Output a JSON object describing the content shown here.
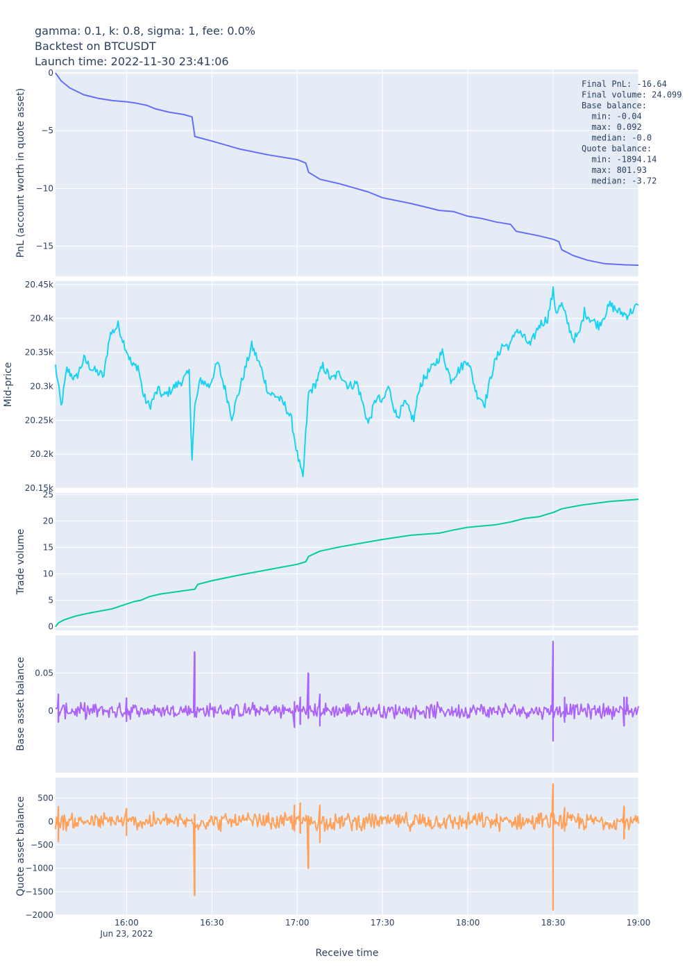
{
  "title_lines": [
    "gamma: 0.1, k: 0.8, sigma: 1, fee: 0.0%",
    "Backtest on BTCUSDT",
    "Launch time: 2022-11-30 23:41:06"
  ],
  "stats_lines": [
    "Final PnL: -16.64",
    "Final volume: 24.099",
    "Base balance:",
    "  min: -0.04",
    "  max: 0.092",
    "  median: -0.0",
    "Quote balance:",
    "  min: -1894.14",
    "  max: 801.93",
    "  median: -3.72"
  ],
  "x_axis": {
    "title": "Receive time",
    "range": [
      "15:35",
      "19:00"
    ],
    "ticks": [
      {
        "time": "16:00",
        "label": "16:00",
        "sublabel": "Jun 23, 2022"
      },
      {
        "time": "16:30",
        "label": "16:30",
        "sublabel": ""
      },
      {
        "time": "17:00",
        "label": "17:00",
        "sublabel": ""
      },
      {
        "time": "17:30",
        "label": "17:30",
        "sublabel": ""
      },
      {
        "time": "18:00",
        "label": "18:00",
        "sublabel": ""
      },
      {
        "time": "18:30",
        "label": "18:30",
        "sublabel": ""
      },
      {
        "time": "19:00",
        "label": "19:00",
        "sublabel": ""
      }
    ]
  },
  "chart_data": [
    {
      "type": "line",
      "ylabel": "PnL (account worth in quote asset)",
      "ylim": [
        -17.6,
        0.3
      ],
      "yticks": [
        {
          "value": 0,
          "label": "0"
        },
        {
          "value": -5,
          "label": "−5"
        },
        {
          "value": -10,
          "label": "−10"
        },
        {
          "value": -15,
          "label": "−15"
        }
      ],
      "color": "#636efa",
      "series": [
        {
          "x": [
            "15:35",
            "15:37",
            "15:40",
            "15:45",
            "15:50",
            "15:55",
            "16:00",
            "16:03",
            "16:07",
            "16:10",
            "16:15",
            "16:20",
            "16:23",
            "16:24",
            "16:30",
            "16:40",
            "16:50",
            "17:00",
            "17:03",
            "17:04",
            "17:08",
            "17:15",
            "17:25",
            "17:30",
            "17:40",
            "17:50",
            "17:55",
            "18:00",
            "18:05",
            "18:10",
            "18:15",
            "18:17",
            "18:25",
            "18:30",
            "18:32",
            "18:33",
            "18:37",
            "18:42",
            "18:48",
            "18:55",
            "19:00"
          ],
          "y": [
            0,
            -0.7,
            -1.3,
            -1.9,
            -2.2,
            -2.4,
            -2.5,
            -2.6,
            -2.8,
            -3.1,
            -3.4,
            -3.6,
            -3.8,
            -5.5,
            -5.9,
            -6.6,
            -7.1,
            -7.5,
            -7.8,
            -8.6,
            -9.2,
            -9.6,
            -10.3,
            -10.8,
            -11.3,
            -11.9,
            -12.0,
            -12.4,
            -12.6,
            -12.9,
            -13.1,
            -13.7,
            -14.1,
            -14.4,
            -14.6,
            -15.3,
            -15.8,
            -16.2,
            -16.5,
            -16.6,
            -16.64
          ]
        }
      ]
    },
    {
      "type": "line",
      "ylabel": "Mid-price",
      "ylim": [
        20150,
        20455
      ],
      "yticks": [
        {
          "value": 20450,
          "label": "20.45k"
        },
        {
          "value": 20400,
          "label": "20.4k"
        },
        {
          "value": 20350,
          "label": "20.35k"
        },
        {
          "value": 20300,
          "label": "20.3k"
        },
        {
          "value": 20250,
          "label": "20.25k"
        },
        {
          "value": 20200,
          "label": "20.2k"
        },
        {
          "value": 20150,
          "label": "20.15k"
        }
      ],
      "color": "#19d3f3",
      "series": [
        {
          "x": [
            "15:35",
            "15:37",
            "15:39",
            "15:42",
            "15:45",
            "15:48",
            "15:52",
            "15:54",
            "15:57",
            "15:59",
            "16:02",
            "16:04",
            "16:06",
            "16:08",
            "16:11",
            "16:13",
            "16:17",
            "16:20",
            "16:22",
            "16:23",
            "16:24",
            "16:26",
            "16:29",
            "16:32",
            "16:35",
            "16:37",
            "16:40",
            "16:44",
            "16:47",
            "16:50",
            "16:53",
            "16:56",
            "16:58",
            "17:00",
            "17:02",
            "17:03",
            "17:04",
            "17:06",
            "17:09",
            "17:12",
            "17:15",
            "17:18",
            "17:21",
            "17:25",
            "17:28",
            "17:30",
            "17:32",
            "17:35",
            "17:38",
            "17:41",
            "17:43",
            "17:46",
            "17:48",
            "17:51",
            "17:54",
            "17:57",
            "18:00",
            "18:03",
            "18:06",
            "18:09",
            "18:12",
            "18:15",
            "18:17",
            "18:20",
            "18:22",
            "18:25",
            "18:28",
            "18:30",
            "18:31",
            "18:33",
            "18:35",
            "18:37",
            "18:39",
            "18:41",
            "18:43",
            "18:46",
            "18:50",
            "18:53",
            "18:56",
            "19:00"
          ],
          "y": [
            20330,
            20270,
            20325,
            20310,
            20340,
            20325,
            20315,
            20375,
            20390,
            20365,
            20330,
            20330,
            20285,
            20270,
            20295,
            20285,
            20300,
            20310,
            20320,
            20195,
            20270,
            20310,
            20300,
            20335,
            20290,
            20255,
            20300,
            20360,
            20330,
            20290,
            20285,
            20270,
            20250,
            20200,
            20163,
            20230,
            20290,
            20300,
            20330,
            20310,
            20320,
            20300,
            20305,
            20245,
            20285,
            20275,
            20300,
            20255,
            20275,
            20250,
            20300,
            20320,
            20330,
            20350,
            20310,
            20325,
            20340,
            20290,
            20275,
            20330,
            20360,
            20360,
            20385,
            20370,
            20360,
            20390,
            20400,
            20440,
            20410,
            20420,
            20395,
            20370,
            20375,
            20410,
            20400,
            20390,
            20420,
            20410,
            20405,
            20420
          ]
        }
      ]
    },
    {
      "type": "line",
      "ylabel": "Trade volume",
      "ylim": [
        -0.7,
        25.3
      ],
      "yticks": [
        {
          "value": 25,
          "label": "25"
        },
        {
          "value": 20,
          "label": "20"
        },
        {
          "value": 15,
          "label": "15"
        },
        {
          "value": 10,
          "label": "10"
        },
        {
          "value": 5,
          "label": "5"
        },
        {
          "value": 0,
          "label": "0"
        }
      ],
      "color": "#00cc96",
      "series": [
        {
          "x": [
            "15:35",
            "15:36",
            "15:38",
            "15:42",
            "15:47",
            "15:52",
            "15:55",
            "16:00",
            "16:03",
            "16:05",
            "16:08",
            "16:12",
            "16:20",
            "16:24",
            "16:25",
            "16:30",
            "16:40",
            "16:50",
            "17:00",
            "17:03",
            "17:04",
            "17:08",
            "17:15",
            "17:30",
            "17:40",
            "17:50",
            "17:55",
            "18:00",
            "18:10",
            "18:15",
            "18:20",
            "18:25",
            "18:28",
            "18:30",
            "18:33",
            "18:40",
            "18:50",
            "19:00"
          ],
          "y": [
            0,
            0.7,
            1.3,
            2.0,
            2.6,
            3.1,
            3.4,
            4.3,
            4.8,
            5.0,
            5.7,
            6.2,
            6.8,
            7.1,
            8.0,
            8.7,
            9.8,
            10.8,
            11.8,
            12.3,
            13.3,
            14.3,
            15.1,
            16.5,
            17.3,
            17.7,
            18.3,
            18.8,
            19.3,
            19.8,
            20.5,
            20.8,
            21.3,
            21.6,
            22.3,
            23.0,
            23.7,
            24.099
          ]
        }
      ]
    },
    {
      "type": "line",
      "ylabel": "Base asset balance",
      "ylim": [
        -0.082,
        0.1
      ],
      "yticks": [
        {
          "value": 0.05,
          "label": "0.05"
        },
        {
          "value": 0,
          "label": "0"
        }
      ],
      "color": "#ab63fa",
      "baseline_noise": 0.008,
      "spikes": [
        {
          "x": "15:36",
          "values": [
            0.022,
            -0.015
          ]
        },
        {
          "x": "16:00",
          "values": [
            0.017,
            -0.014
          ]
        },
        {
          "x": "16:24",
          "values": [
            0.078,
            -0.008
          ]
        },
        {
          "x": "16:59",
          "values": [
            -0.022,
            0.012
          ]
        },
        {
          "x": "17:01",
          "values": [
            0.018,
            -0.018
          ]
        },
        {
          "x": "17:04",
          "values": [
            0.05,
            -0.01
          ]
        },
        {
          "x": "17:08",
          "values": [
            0.022,
            -0.02
          ]
        },
        {
          "x": "18:30",
          "values": [
            0.092,
            -0.04
          ]
        },
        {
          "x": "18:34",
          "values": [
            -0.015,
            0.018
          ]
        },
        {
          "x": "18:55",
          "values": [
            -0.02,
            0.018
          ]
        },
        {
          "x": "18:56",
          "values": [
            0.018
          ]
        }
      ]
    },
    {
      "type": "line",
      "ylabel": "Quote asset balance",
      "ylim": [
        -2000,
        940
      ],
      "yticks": [
        {
          "value": 500,
          "label": "500"
        },
        {
          "value": 0,
          "label": "0"
        },
        {
          "value": -500,
          "label": "−500"
        },
        {
          "value": -1000,
          "label": "−1000"
        },
        {
          "value": -1500,
          "label": "−1500"
        },
        {
          "value": -2000,
          "label": "−2000"
        }
      ],
      "color": "#ffa15a",
      "baseline_noise": 150,
      "spikes": [
        {
          "x": "15:36",
          "values": [
            320,
            -430
          ]
        },
        {
          "x": "16:00",
          "values": [
            280,
            -300
          ]
        },
        {
          "x": "16:24",
          "values": [
            -1580,
            150
          ]
        },
        {
          "x": "16:59",
          "values": [
            350,
            -200
          ]
        },
        {
          "x": "17:01",
          "values": [
            400,
            -250
          ]
        },
        {
          "x": "17:04",
          "values": [
            -1000,
            120
          ]
        },
        {
          "x": "17:08",
          "values": [
            350,
            -450
          ]
        },
        {
          "x": "18:30",
          "values": [
            801.93,
            -1894.14
          ]
        },
        {
          "x": "18:34",
          "values": [
            300,
            -200
          ]
        },
        {
          "x": "18:55",
          "values": [
            330,
            -370
          ]
        }
      ]
    }
  ]
}
